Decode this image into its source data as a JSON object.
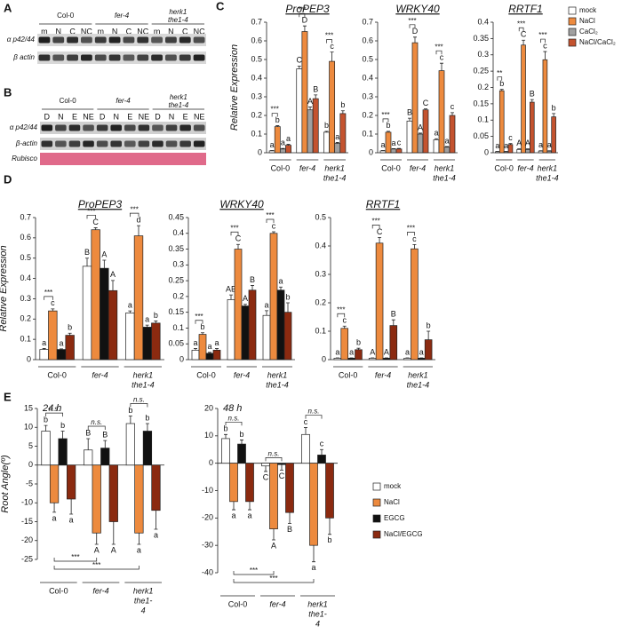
{
  "panels": [
    "A",
    "B",
    "C",
    "D",
    "E"
  ],
  "blot_a": {
    "groups": [
      [
        "Col-0"
      ],
      [
        "fer-4"
      ],
      [
        "herk1",
        "the1-4"
      ]
    ],
    "lanes": [
      "m",
      "N",
      "C",
      "NC",
      "m",
      "N",
      "C",
      "NC",
      "m",
      "N",
      "C",
      "NC"
    ],
    "rows": [
      "α p42/44",
      "β actin"
    ]
  },
  "blot_b": {
    "groups": [
      [
        "Col-0"
      ],
      [
        "fer-4"
      ],
      [
        "herk1",
        "the1-4"
      ]
    ],
    "lanes": [
      "D",
      "N",
      "E",
      "NE",
      "D",
      "N",
      "E",
      "NE",
      "D",
      "N",
      "E",
      "NE"
    ],
    "rows": [
      "α p42/44",
      "β-actin",
      "Rubisco"
    ]
  },
  "chart_data": [
    {
      "type": "bar",
      "title": "ProPEP3",
      "y_label": "Relative Expression",
      "legend": true,
      "categories": [
        [
          "Col-0"
        ],
        [
          "fer-4"
        ],
        [
          "herk1",
          "the1-4"
        ]
      ],
      "ylim": [
        0,
        0.7
      ],
      "yticks": [
        0,
        0.1,
        0.2,
        0.3,
        0.4,
        0.5,
        0.6,
        0.7
      ],
      "sig": [
        "***",
        "***",
        "***"
      ],
      "series": [
        {
          "name": "mock",
          "color": "#ffffff",
          "values": [
            0.01,
            0.45,
            0.11
          ],
          "errors": [
            0.002,
            0.015,
            0.005
          ],
          "letters": [
            "a",
            "C",
            "b"
          ]
        },
        {
          "name": "NaCl",
          "color": "#ed8a3e",
          "values": [
            0.14,
            0.65,
            0.49
          ],
          "errors": [
            0.005,
            0.03,
            0.05
          ],
          "letters": [
            "b",
            "D",
            "c"
          ]
        },
        {
          "name": "CaCl₂",
          "color": "#a0a0a0",
          "values": [
            0.02,
            0.23,
            0.05
          ],
          "errors": [
            0.003,
            0.015,
            0.005
          ],
          "letters": [
            "a",
            "A",
            "a"
          ]
        },
        {
          "name": "NaCl/CaCl₂",
          "color": "#c4532f",
          "values": [
            0.04,
            0.29,
            0.21
          ],
          "errors": [
            0.005,
            0.02,
            0.015
          ],
          "letters": [
            "a",
            "B",
            "b"
          ]
        }
      ]
    },
    {
      "type": "bar",
      "title": "WRKY40",
      "categories": [
        [
          "Col-0"
        ],
        [
          "fer-4"
        ],
        [
          "herk1",
          "the1-4"
        ]
      ],
      "ylim": [
        0,
        0.7
      ],
      "yticks": [
        0,
        0.1,
        0.2,
        0.3,
        0.4,
        0.5,
        0.6,
        0.7
      ],
      "sig": [
        "***",
        "***",
        "***"
      ],
      "series": [
        {
          "name": "mock",
          "color": "#ffffff",
          "values": [
            0.01,
            0.17,
            0.07
          ],
          "errors": [
            0.002,
            0.015,
            0.005
          ],
          "letters": [
            "a",
            "B",
            "a"
          ]
        },
        {
          "name": "NaCl",
          "color": "#ed8a3e",
          "values": [
            0.11,
            0.59,
            0.44
          ],
          "errors": [
            0.005,
            0.03,
            0.04
          ],
          "letters": [
            "b",
            "D",
            "c"
          ]
        },
        {
          "name": "CaCl₂",
          "color": "#a0a0a0",
          "values": [
            0.02,
            0.1,
            0.03
          ],
          "errors": [
            0.002,
            0.005,
            0.003
          ],
          "letters": [
            "a",
            "A",
            "a"
          ]
        },
        {
          "name": "NaCl/CaCl₂",
          "color": "#c4532f",
          "values": [
            0.02,
            0.23,
            0.2
          ],
          "errors": [
            0.003,
            0.005,
            0.015
          ],
          "letters": [
            "c",
            "C",
            "c"
          ]
        }
      ]
    },
    {
      "type": "bar",
      "title": "RRTF1",
      "categories": [
        [
          "Col-0"
        ],
        [
          "fer-4"
        ],
        [
          "herk1",
          "the1-4"
        ]
      ],
      "ylim": [
        0,
        0.4
      ],
      "yticks": [
        0,
        0.05,
        0.1,
        0.15,
        0.2,
        0.25,
        0.3,
        0.35,
        0.4
      ],
      "sig": [
        "**",
        "***",
        "***"
      ],
      "series": [
        {
          "name": "mock",
          "color": "#ffffff",
          "values": [
            0.003,
            0.01,
            0.005
          ],
          "errors": [
            0.001,
            0.002,
            0.001
          ],
          "letters": [
            "a",
            "A",
            "a"
          ]
        },
        {
          "name": "NaCl",
          "color": "#ed8a3e",
          "values": [
            0.19,
            0.33,
            0.285
          ],
          "errors": [
            0.004,
            0.015,
            0.025
          ],
          "letters": [
            "b",
            "C",
            "c"
          ]
        },
        {
          "name": "CaCl₂",
          "color": "#a0a0a0",
          "values": [
            0.003,
            0.01,
            0.005
          ],
          "errors": [
            0.001,
            0.002,
            0.001
          ],
          "letters": [
            "a",
            "A",
            "a"
          ]
        },
        {
          "name": "NaCl/CaCl₂",
          "color": "#c4532f",
          "values": [
            0.025,
            0.155,
            0.11
          ],
          "errors": [
            0.003,
            0.008,
            0.01
          ],
          "letters": [
            "c",
            "B",
            "b"
          ]
        }
      ]
    },
    {
      "type": "bar",
      "title": "ProPEP3",
      "y_label": "Relative Expression",
      "categories": [
        [
          "Col-0"
        ],
        [
          "fer-4"
        ],
        [
          "herk1",
          "the1-4"
        ]
      ],
      "ylim": [
        0,
        0.7
      ],
      "yticks": [
        0,
        0.1,
        0.2,
        0.3,
        0.4,
        0.5,
        0.6,
        0.7
      ],
      "sig": [
        "***",
        "***",
        "***"
      ],
      "series": [
        {
          "name": "mock",
          "color": "#ffffff",
          "values": [
            0.05,
            0.46,
            0.23
          ],
          "errors": [
            0.005,
            0.04,
            0.01
          ],
          "letters": [
            "a",
            "B",
            "a"
          ]
        },
        {
          "name": "NaCl",
          "color": "#ed8a3e",
          "values": [
            0.24,
            0.64,
            0.61
          ],
          "errors": [
            0.01,
            0.01,
            0.05
          ],
          "letters": [
            "c",
            "C",
            "d"
          ]
        },
        {
          "name": "EGCG",
          "color": "#111111",
          "values": [
            0.05,
            0.45,
            0.16
          ],
          "errors": [
            0.003,
            0.04,
            0.01
          ],
          "letters": [
            "a",
            "A",
            "a"
          ]
        },
        {
          "name": "NaCl/EGCG",
          "color": "#8b2a10",
          "values": [
            0.12,
            0.34,
            0.18
          ],
          "errors": [
            0.01,
            0.05,
            0.01
          ],
          "letters": [
            "b",
            "A",
            "b"
          ]
        }
      ]
    },
    {
      "type": "bar",
      "title": "WRKY40",
      "categories": [
        [
          "Col-0"
        ],
        [
          "fer-4"
        ],
        [
          "herk1",
          "the1-4"
        ]
      ],
      "ylim": [
        0,
        0.45
      ],
      "yticks": [
        0,
        0.05,
        0.1,
        0.15,
        0.2,
        0.25,
        0.3,
        0.35,
        0.4,
        0.45
      ],
      "sig": [
        "***",
        "***",
        "***"
      ],
      "series": [
        {
          "name": "mock",
          "color": "#ffffff",
          "values": [
            0.03,
            0.19,
            0.14
          ],
          "errors": [
            0.005,
            0.015,
            0.015
          ],
          "letters": [
            "a",
            "AB",
            "a"
          ]
        },
        {
          "name": "NaCl",
          "color": "#ed8a3e",
          "values": [
            0.08,
            0.35,
            0.4
          ],
          "errors": [
            0.005,
            0.015,
            0.005
          ],
          "letters": [
            "b",
            "C",
            "c"
          ]
        },
        {
          "name": "EGCG",
          "color": "#111111",
          "values": [
            0.02,
            0.17,
            0.22
          ],
          "errors": [
            0.003,
            0.005,
            0.01
          ],
          "letters": [
            "a",
            "A",
            "a"
          ]
        },
        {
          "name": "NaCl/EGCG",
          "color": "#8b2a10",
          "values": [
            0.03,
            0.22,
            0.15
          ],
          "errors": [
            0.005,
            0.015,
            0.03
          ],
          "letters": [
            "a",
            "B",
            "b"
          ]
        }
      ]
    },
    {
      "type": "bar",
      "title": "RRTF1",
      "categories": [
        [
          "Col-0"
        ],
        [
          "fer-4"
        ],
        [
          "herk1",
          "the1-4"
        ]
      ],
      "ylim": [
        0,
        0.5
      ],
      "yticks": [
        0,
        0.1,
        0.2,
        0.3,
        0.4,
        0.5
      ],
      "sig": [
        "***",
        "***",
        "***"
      ],
      "series": [
        {
          "name": "mock",
          "color": "#ffffff",
          "values": [
            0.005,
            0.005,
            0.005
          ],
          "errors": [
            0.001,
            0.001,
            0.001
          ],
          "letters": [
            "a",
            "A",
            "a"
          ]
        },
        {
          "name": "NaCl",
          "color": "#ed8a3e",
          "values": [
            0.11,
            0.41,
            0.39
          ],
          "errors": [
            0.008,
            0.02,
            0.015
          ],
          "letters": [
            "c",
            "C",
            "c"
          ]
        },
        {
          "name": "EGCG",
          "color": "#111111",
          "values": [
            0.005,
            0.005,
            0.005
          ],
          "errors": [
            0.001,
            0.001,
            0.001
          ],
          "letters": [
            "a",
            "A",
            "a"
          ]
        },
        {
          "name": "NaCl/EGCG",
          "color": "#8b2a10",
          "values": [
            0.035,
            0.12,
            0.07
          ],
          "errors": [
            0.005,
            0.02,
            0.03
          ],
          "letters": [
            "b",
            "B",
            "b"
          ]
        }
      ]
    },
    {
      "type": "bar",
      "title": "24 h",
      "y_label": "Root Angle(º)",
      "categories": [
        [
          "Col-0"
        ],
        [
          "fer-4"
        ],
        [
          "herk1",
          "the1-",
          "4"
        ]
      ],
      "ylim": [
        -25,
        15
      ],
      "yticks": [
        -25,
        -20,
        -15,
        -10,
        -5,
        0,
        5,
        10,
        15
      ],
      "sig": [
        "n.s.",
        "n.s.",
        "n.s."
      ],
      "cross_sig": [
        "***",
        "***"
      ],
      "series": [
        {
          "name": "mock",
          "color": "#ffffff",
          "values": [
            9,
            4,
            11
          ],
          "errors": [
            1.5,
            3,
            2
          ],
          "letters": [
            "b",
            "B",
            "b"
          ]
        },
        {
          "name": "NaCl",
          "color": "#ed8a3e",
          "values": [
            -10,
            -18,
            -18
          ],
          "errors": [
            2.5,
            3,
            3
          ],
          "letters": [
            "a",
            "A",
            "a"
          ]
        },
        {
          "name": "EGCG",
          "color": "#111111",
          "values": [
            7,
            4.5,
            9
          ],
          "errors": [
            2,
            2,
            2
          ],
          "letters": [
            "b",
            "B",
            "b"
          ]
        },
        {
          "name": "NaCl/EGCG",
          "color": "#8b2a10",
          "values": [
            -9,
            -15,
            -12
          ],
          "errors": [
            4,
            6,
            5
          ],
          "letters": [
            "a",
            "A",
            "a"
          ]
        }
      ]
    },
    {
      "type": "bar",
      "title": "48 h",
      "legend": true,
      "categories": [
        [
          "Col-0"
        ],
        [
          "fer-4"
        ],
        [
          "herk1",
          "the1-",
          "4"
        ]
      ],
      "ylim": [
        -40,
        20
      ],
      "yticks": [
        -40,
        -30,
        -20,
        -10,
        0,
        10,
        20
      ],
      "sig": [
        "n.s.",
        "n.s.",
        "n.s."
      ],
      "cross_sig": [
        "***",
        "***"
      ],
      "series": [
        {
          "name": "mock",
          "color": "#ffffff",
          "values": [
            9,
            -1,
            10.5
          ],
          "errors": [
            1.5,
            2,
            2.5
          ],
          "letters": [
            "b",
            "C",
            "c"
          ]
        },
        {
          "name": "NaCl",
          "color": "#ed8a3e",
          "values": [
            -14,
            -24,
            -30
          ],
          "errors": [
            3,
            4,
            6
          ],
          "letters": [
            "a",
            "A",
            "a"
          ]
        },
        {
          "name": "EGCG",
          "color": "#111111",
          "values": [
            7,
            -0.5,
            3
          ],
          "errors": [
            1.5,
            2,
            2
          ],
          "letters": [
            "b",
            "C",
            "c"
          ]
        },
        {
          "name": "NaCl/EGCG",
          "color": "#8b2a10",
          "values": [
            -14,
            -18,
            -20
          ],
          "errors": [
            3,
            4,
            6
          ],
          "letters": [
            "a",
            "B",
            "b"
          ]
        }
      ]
    }
  ]
}
